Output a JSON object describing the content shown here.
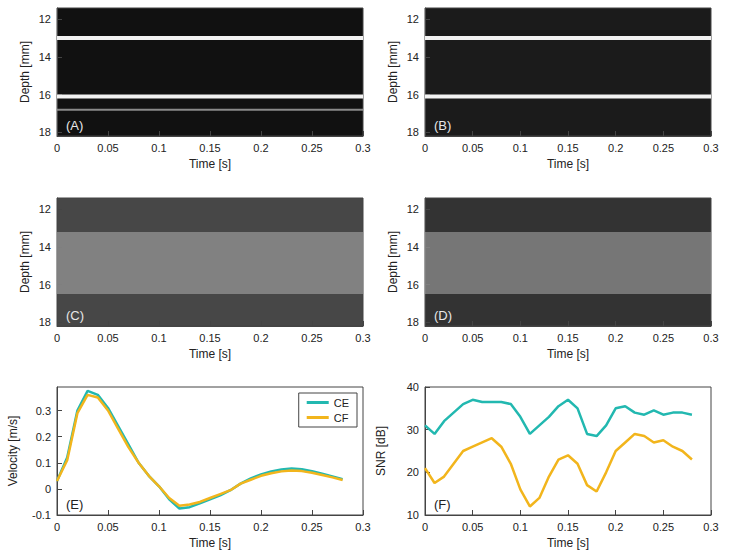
{
  "chart_data": [
    {
      "type": "image",
      "label": "(A)",
      "x_label": "Time [s]",
      "y_label": "Depth [mm]",
      "xlim": [
        0,
        0.3
      ],
      "xticks": [
        0,
        0.05,
        0.1,
        0.15,
        0.2,
        0.25,
        0.3
      ],
      "ylim": [
        11.4,
        18.2
      ],
      "yticks": [
        12,
        14,
        16,
        18
      ],
      "walls": [
        13.0,
        16.1,
        16.8
      ]
    },
    {
      "type": "image",
      "label": "(B)",
      "x_label": "Time [s]",
      "y_label": "Depth [mm]",
      "xlim": [
        0,
        0.3
      ],
      "xticks": [
        0,
        0.05,
        0.1,
        0.15,
        0.2,
        0.25,
        0.3
      ],
      "ylim": [
        11.4,
        18.2
      ],
      "yticks": [
        12,
        14,
        16,
        18
      ],
      "walls": [
        13.0,
        16.1
      ]
    },
    {
      "type": "image",
      "label": "(C)",
      "x_label": "Time [s]",
      "y_label": "Depth [mm]",
      "xlim": [
        0,
        0.3
      ],
      "xticks": [
        0,
        0.05,
        0.1,
        0.15,
        0.2,
        0.25,
        0.3
      ],
      "ylim": [
        11.4,
        18.2
      ],
      "yticks": [
        12,
        14,
        16,
        18
      ],
      "lumen": [
        13.2,
        16.5
      ]
    },
    {
      "type": "image",
      "label": "(D)",
      "x_label": "Time [s]",
      "y_label": "Depth [mm]",
      "xlim": [
        0,
        0.3
      ],
      "xticks": [
        0,
        0.05,
        0.1,
        0.15,
        0.2,
        0.25,
        0.3
      ],
      "ylim": [
        11.4,
        18.2
      ],
      "yticks": [
        12,
        14,
        16,
        18
      ],
      "lumen": [
        13.2,
        16.5
      ]
    },
    {
      "type": "line",
      "label": "(E)",
      "x_label": "Time [s]",
      "y_label": "Velocity [m/s]",
      "xlim": [
        0,
        0.3
      ],
      "xticks": [
        0,
        0.05,
        0.1,
        0.15,
        0.2,
        0.25,
        0.3
      ],
      "ylim": [
        -0.1,
        0.39
      ],
      "yticks": [
        -0.1,
        0,
        0.1,
        0.2,
        0.3
      ],
      "legend": "upper right",
      "x": [
        0,
        0.01,
        0.02,
        0.03,
        0.04,
        0.05,
        0.06,
        0.07,
        0.08,
        0.09,
        0.1,
        0.11,
        0.12,
        0.13,
        0.14,
        0.15,
        0.16,
        0.17,
        0.18,
        0.19,
        0.2,
        0.21,
        0.22,
        0.23,
        0.24,
        0.25,
        0.26,
        0.27,
        0.28
      ],
      "series": [
        {
          "name": "CE",
          "color": "#22b8b0",
          "values": [
            0.03,
            0.12,
            0.3,
            0.375,
            0.36,
            0.31,
            0.24,
            0.17,
            0.1,
            0.05,
            0.01,
            -0.04,
            -0.075,
            -0.07,
            -0.055,
            -0.04,
            -0.025,
            -0.005,
            0.02,
            0.04,
            0.055,
            0.067,
            0.074,
            0.078,
            0.075,
            0.068,
            0.058,
            0.048,
            0.037
          ]
        },
        {
          "name": "CF",
          "color": "#f2b51c",
          "values": [
            0.03,
            0.11,
            0.29,
            0.36,
            0.35,
            0.3,
            0.23,
            0.16,
            0.1,
            0.05,
            0.01,
            -0.035,
            -0.065,
            -0.06,
            -0.05,
            -0.035,
            -0.02,
            -0.005,
            0.02,
            0.035,
            0.05,
            0.06,
            0.067,
            0.07,
            0.068,
            0.062,
            0.053,
            0.044,
            0.034
          ]
        }
      ]
    },
    {
      "type": "line",
      "label": "(F)",
      "x_label": "Time [s]",
      "y_label": "SNR [dB]",
      "xlim": [
        0,
        0.3
      ],
      "xticks": [
        0,
        0.05,
        0.1,
        0.15,
        0.2,
        0.25,
        0.3
      ],
      "ylim": [
        10,
        40
      ],
      "yticks": [
        10,
        20,
        30,
        40
      ],
      "x": [
        0,
        0.01,
        0.02,
        0.03,
        0.04,
        0.05,
        0.06,
        0.07,
        0.08,
        0.09,
        0.1,
        0.11,
        0.12,
        0.13,
        0.14,
        0.15,
        0.16,
        0.17,
        0.18,
        0.19,
        0.2,
        0.21,
        0.22,
        0.23,
        0.24,
        0.25,
        0.26,
        0.27,
        0.28
      ],
      "series": [
        {
          "name": "CE",
          "color": "#22b8b0",
          "values": [
            31,
            29,
            32,
            34,
            36,
            37,
            36.5,
            36.5,
            36.5,
            36,
            33,
            29,
            31,
            33,
            35.5,
            37,
            35,
            29,
            28.5,
            31,
            35,
            35.5,
            34,
            33.5,
            34.5,
            33.5,
            34,
            34,
            33.5
          ]
        },
        {
          "name": "CF",
          "color": "#f2b51c",
          "values": [
            21,
            17.5,
            19,
            22,
            25,
            26,
            27,
            28,
            26,
            22,
            16,
            12,
            14,
            19,
            23,
            24,
            22,
            17,
            15.5,
            20,
            25,
            27,
            29,
            28.5,
            27,
            27.5,
            26,
            25,
            23
          ]
        }
      ]
    }
  ]
}
